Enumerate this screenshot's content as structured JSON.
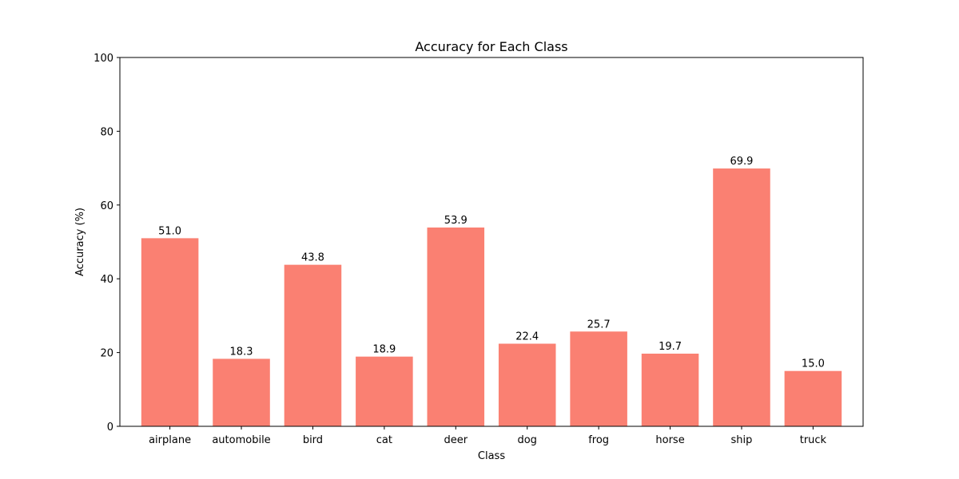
{
  "chart_data": {
    "type": "bar",
    "title": "Accuracy for Each Class",
    "xlabel": "Class",
    "ylabel": "Accuracy (%)",
    "categories": [
      "airplane",
      "automobile",
      "bird",
      "cat",
      "deer",
      "dog",
      "frog",
      "horse",
      "ship",
      "truck"
    ],
    "values": [
      51.0,
      18.3,
      43.8,
      18.9,
      53.9,
      22.4,
      25.7,
      19.7,
      69.9,
      15.0
    ],
    "value_labels": [
      "51.0",
      "18.3",
      "43.8",
      "18.9",
      "53.9",
      "22.4",
      "25.7",
      "19.7",
      "69.9",
      "15.0"
    ],
    "ylim": [
      0,
      100
    ],
    "yticks": [
      0,
      20,
      40,
      60,
      80,
      100
    ],
    "ytick_labels": [
      "0",
      "20",
      "40",
      "60",
      "80",
      "100"
    ],
    "grid": false,
    "bar_color": "#fa8072"
  }
}
